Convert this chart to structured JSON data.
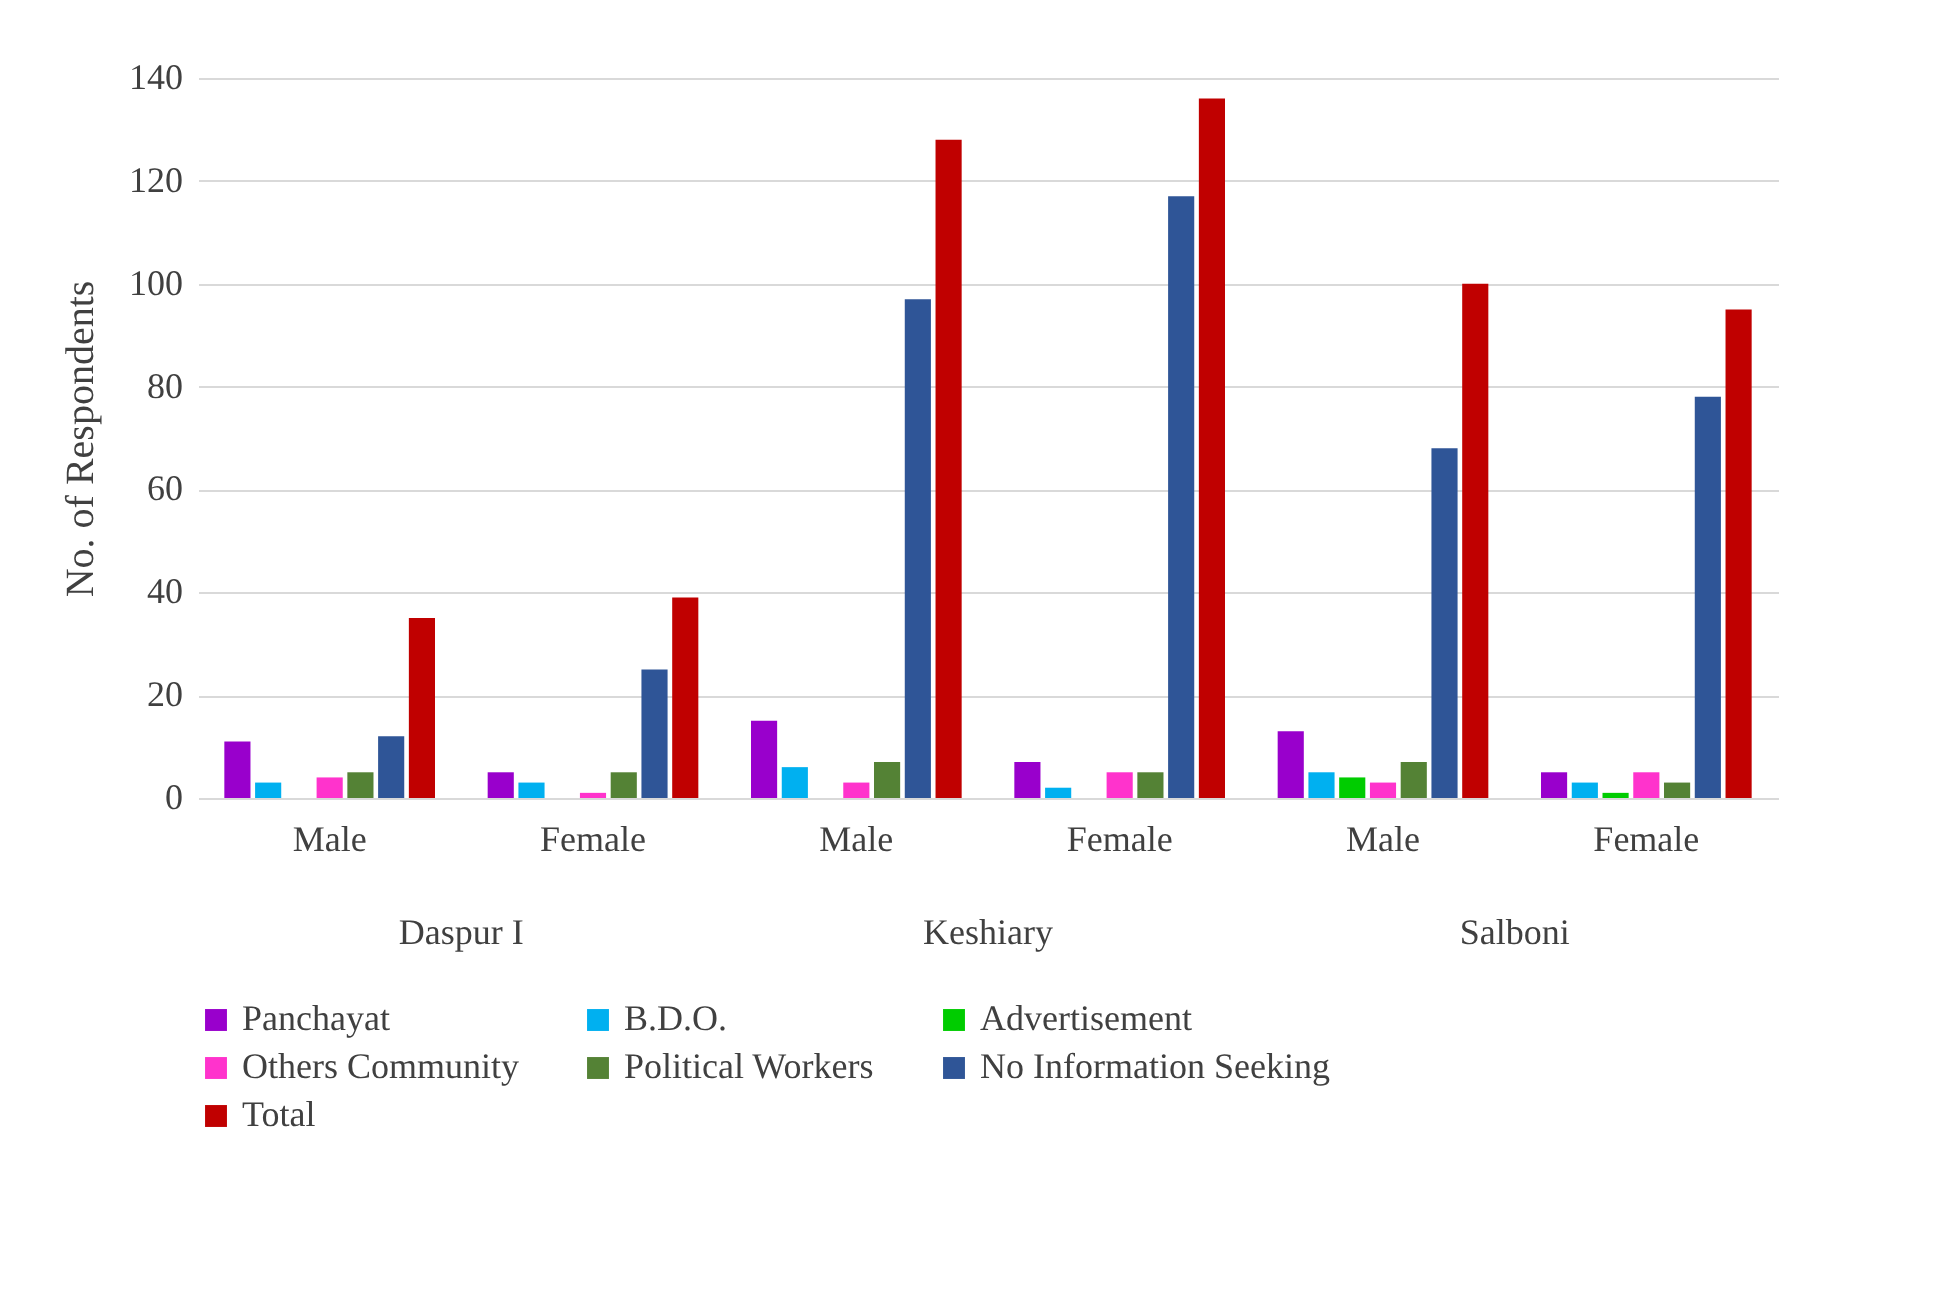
{
  "chart_data": {
    "type": "bar",
    "ylabel": "No. of Respondents",
    "categories": [
      "Male",
      "Female",
      "Male",
      "Female",
      "Male",
      "Female"
    ],
    "annotations": [
      "Daspur I",
      "Keshiary",
      "Salboni"
    ],
    "series": [
      {
        "name": "Panchayat",
        "color": "#9900cc",
        "values": [
          11,
          5,
          15,
          7,
          13,
          5
        ]
      },
      {
        "name": "B.D.O.",
        "color": "#00b0f0",
        "values": [
          3,
          3,
          6,
          2,
          5,
          3
        ]
      },
      {
        "name": "Advertisement",
        "color": "#00cc00",
        "values": [
          0,
          0,
          0,
          0,
          4,
          1
        ]
      },
      {
        "name": "Others Community",
        "color": "#ff33cc",
        "values": [
          4,
          1,
          3,
          5,
          3,
          5
        ]
      },
      {
        "name": "Political Workers",
        "color": "#548235",
        "values": [
          5,
          5,
          7,
          5,
          7,
          3
        ]
      },
      {
        "name": "No Information Seeking",
        "color": "#2f5597",
        "values": [
          12,
          25,
          97,
          117,
          68,
          78
        ]
      },
      {
        "name": "Total",
        "color": "#c00000",
        "values": [
          35,
          39,
          128,
          136,
          100,
          95
        ]
      }
    ],
    "ylim": [
      0,
      140
    ],
    "yticks": [
      0,
      20,
      40,
      60,
      80,
      100,
      120,
      140
    ],
    "grid": "y",
    "legend": "bottom"
  }
}
